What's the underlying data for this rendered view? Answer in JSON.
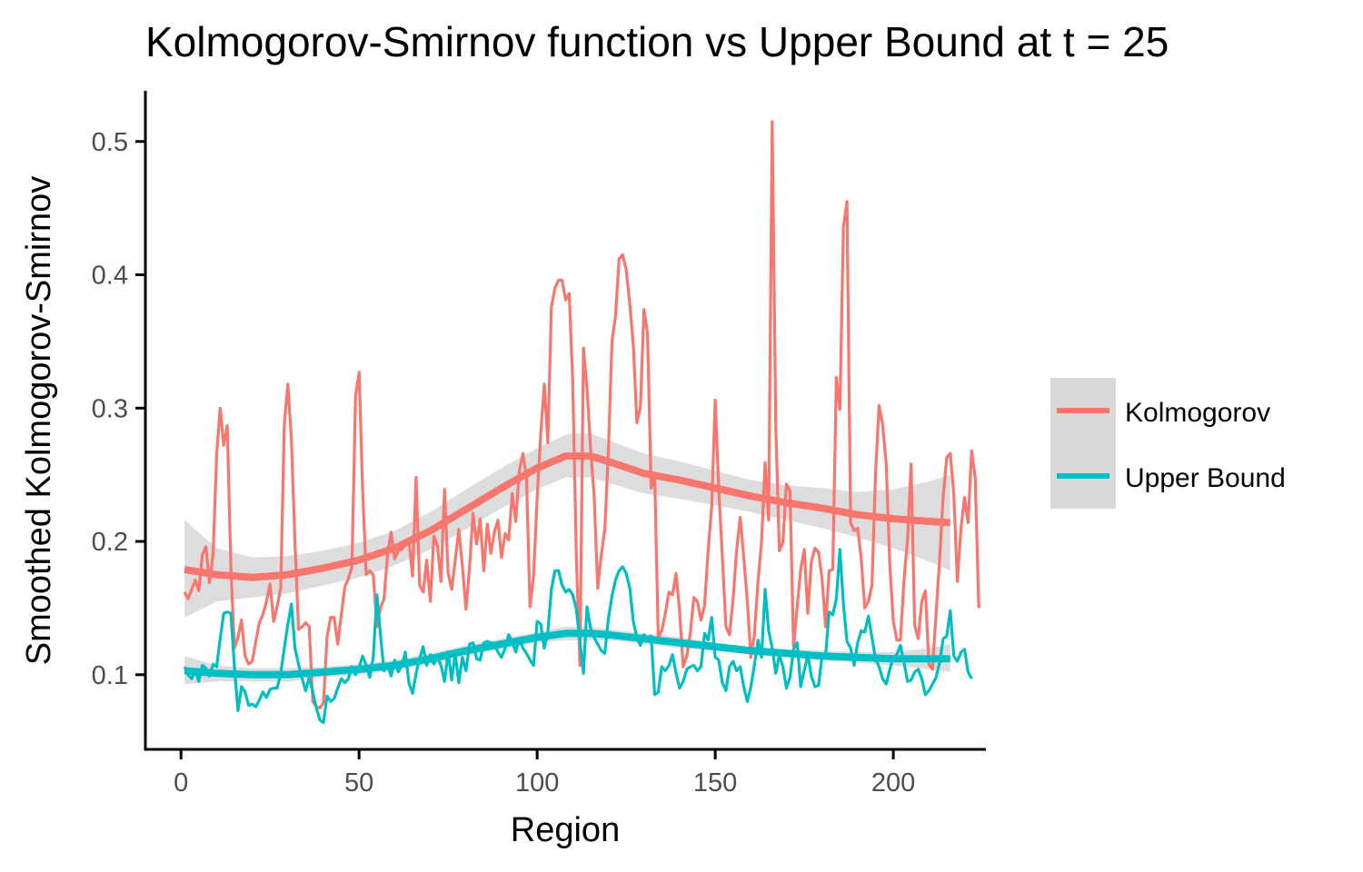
{
  "chart_data": {
    "type": "line",
    "title": "Kolmogorov-Smirnov function vs Upper Bound at t = 25",
    "xlabel": "Region",
    "ylabel": "Smoothed Kolmogorov-Smirnov",
    "xlim": [
      -10,
      226
    ],
    "ylim": [
      0.044,
      0.538
    ],
    "xticks": [
      0,
      50,
      100,
      150,
      200
    ],
    "yticks": [
      0.1,
      0.2,
      0.3,
      0.4,
      0.5
    ],
    "xtick_labels": [
      "0",
      "50",
      "100",
      "150",
      "200"
    ],
    "ytick_labels": [
      "0.1",
      "0.2",
      "0.3",
      "0.4",
      "0.5"
    ],
    "grid": false,
    "legend_position": "right",
    "colors": {
      "kolmogorov": "#F8766D",
      "upper_bound": "#00BFC4",
      "ribbon": "#D9D9D9",
      "axis": "#000000",
      "legend_key_bg": "#D9D9D9"
    },
    "series": [
      {
        "name": "Kolmogorov",
        "key": "kolmogorov",
        "x_start": 1,
        "values": [
          0.162,
          0.157,
          0.164,
          0.171,
          0.163,
          0.19,
          0.196,
          0.169,
          0.19,
          0.265,
          0.3,
          0.272,
          0.287,
          0.18,
          0.12,
          0.128,
          0.141,
          0.114,
          0.108,
          0.11,
          0.125,
          0.139,
          0.145,
          0.155,
          0.168,
          0.14,
          0.151,
          0.165,
          0.288,
          0.318,
          0.276,
          0.2,
          0.134,
          0.136,
          0.139,
          0.136,
          0.08,
          0.076,
          0.075,
          0.079,
          0.128,
          0.143,
          0.143,
          0.123,
          0.145,
          0.166,
          0.172,
          0.181,
          0.309,
          0.327,
          0.238,
          0.175,
          0.178,
          0.175,
          0.136,
          0.15,
          0.157,
          0.19,
          0.207,
          0.187,
          0.193,
          0.194,
          0.198,
          0.201,
          0.174,
          0.248,
          0.167,
          0.162,
          0.186,
          0.155,
          0.204,
          0.197,
          0.17,
          0.239,
          0.176,
          0.164,
          0.186,
          0.209,
          0.182,
          0.149,
          0.18,
          0.221,
          0.198,
          0.217,
          0.178,
          0.213,
          0.191,
          0.207,
          0.216,
          0.188,
          0.206,
          0.201,
          0.236,
          0.215,
          0.253,
          0.266,
          0.248,
          0.151,
          0.174,
          0.232,
          0.281,
          0.318,
          0.274,
          0.376,
          0.39,
          0.396,
          0.396,
          0.381,
          0.386,
          0.32,
          0.188,
          0.107,
          0.345,
          0.315,
          0.27,
          0.234,
          0.165,
          0.19,
          0.209,
          0.267,
          0.35,
          0.369,
          0.412,
          0.415,
          0.404,
          0.378,
          0.347,
          0.289,
          0.301,
          0.374,
          0.356,
          0.24,
          0.25,
          0.128,
          0.133,
          0.146,
          0.162,
          0.16,
          0.176,
          0.148,
          0.106,
          0.114,
          0.131,
          0.158,
          0.155,
          0.141,
          0.152,
          0.193,
          0.226,
          0.306,
          0.239,
          0.188,
          0.136,
          0.13,
          0.156,
          0.193,
          0.218,
          0.188,
          0.156,
          0.113,
          0.13,
          0.17,
          0.2,
          0.259,
          0.216,
          0.515,
          0.285,
          0.193,
          0.199,
          0.243,
          0.238,
          0.121,
          0.151,
          0.179,
          0.194,
          0.146,
          0.185,
          0.195,
          0.192,
          0.172,
          0.136,
          0.178,
          0.179,
          0.323,
          0.299,
          0.436,
          0.455,
          0.214,
          0.208,
          0.21,
          0.187,
          0.15,
          0.155,
          0.167,
          0.25,
          0.302,
          0.288,
          0.258,
          0.183,
          0.14,
          0.126,
          0.126,
          0.171,
          0.202,
          0.258,
          0.137,
          0.127,
          0.155,
          0.163,
          0.108,
          0.104,
          0.145,
          0.186,
          0.234,
          0.263,
          0.266,
          0.235,
          0.17,
          0.21,
          0.233,
          0.214,
          0.268,
          0.248,
          0.15
        ]
      },
      {
        "name": "Upper Bound",
        "key": "upper_bound",
        "x_start": 1,
        "values": [
          0.106,
          0.1,
          0.097,
          0.103,
          0.095,
          0.107,
          0.105,
          0.099,
          0.108,
          0.106,
          0.127,
          0.146,
          0.147,
          0.146,
          0.106,
          0.073,
          0.091,
          0.087,
          0.077,
          0.078,
          0.076,
          0.081,
          0.087,
          0.083,
          0.089,
          0.09,
          0.09,
          0.101,
          0.12,
          0.138,
          0.153,
          0.12,
          0.108,
          0.097,
          0.088,
          0.098,
          0.087,
          0.075,
          0.066,
          0.064,
          0.084,
          0.08,
          0.082,
          0.09,
          0.097,
          0.094,
          0.097,
          0.106,
          0.1,
          0.106,
          0.114,
          0.107,
          0.098,
          0.113,
          0.16,
          0.13,
          0.103,
          0.108,
          0.099,
          0.111,
          0.102,
          0.107,
          0.117,
          0.094,
          0.086,
          0.101,
          0.112,
          0.121,
          0.107,
          0.115,
          0.108,
          0.113,
          0.107,
          0.095,
          0.117,
          0.096,
          0.116,
          0.094,
          0.113,
          0.103,
          0.123,
          0.124,
          0.112,
          0.111,
          0.124,
          0.125,
          0.124,
          0.123,
          0.117,
          0.113,
          0.12,
          0.13,
          0.125,
          0.117,
          0.127,
          0.12,
          0.116,
          0.111,
          0.107,
          0.14,
          0.138,
          0.12,
          0.132,
          0.164,
          0.178,
          0.178,
          0.167,
          0.162,
          0.164,
          0.16,
          0.149,
          0.125,
          0.101,
          0.151,
          0.135,
          0.128,
          0.123,
          0.118,
          0.116,
          0.142,
          0.159,
          0.171,
          0.178,
          0.181,
          0.176,
          0.165,
          0.14,
          0.128,
          0.122,
          0.13,
          0.127,
          0.129,
          0.085,
          0.087,
          0.106,
          0.103,
          0.107,
          0.115,
          0.101,
          0.09,
          0.095,
          0.104,
          0.106,
          0.107,
          0.103,
          0.106,
          0.131,
          0.126,
          0.143,
          0.113,
          0.111,
          0.094,
          0.088,
          0.106,
          0.11,
          0.103,
          0.106,
          0.091,
          0.08,
          0.091,
          0.107,
          0.126,
          0.113,
          0.164,
          0.133,
          0.12,
          0.101,
          0.115,
          0.106,
          0.09,
          0.098,
          0.119,
          0.124,
          0.091,
          0.103,
          0.115,
          0.099,
          0.091,
          0.092,
          0.114,
          0.115,
          0.147,
          0.145,
          0.157,
          0.194,
          0.153,
          0.125,
          0.12,
          0.107,
          0.124,
          0.133,
          0.132,
          0.144,
          0.128,
          0.112,
          0.106,
          0.097,
          0.093,
          0.104,
          0.113,
          0.115,
          0.122,
          0.109,
          0.095,
          0.096,
          0.102,
          0.104,
          0.097,
          0.085,
          0.088,
          0.093,
          0.098,
          0.109,
          0.127,
          0.129,
          0.148,
          0.114,
          0.11,
          0.117,
          0.119,
          0.102,
          0.097
        ]
      }
    ],
    "smoothed": [
      {
        "name": "Kolmogorov",
        "key": "kolmogorov",
        "x": [
          1,
          10,
          20,
          30,
          40,
          50,
          60,
          70,
          80,
          90,
          100,
          108,
          110,
          115,
          120,
          130,
          140,
          150,
          160,
          170,
          180,
          190,
          200,
          210,
          216
        ],
        "fit": [
          0.179,
          0.175,
          0.173,
          0.175,
          0.18,
          0.186,
          0.195,
          0.208,
          0.224,
          0.24,
          0.255,
          0.264,
          0.264,
          0.264,
          0.26,
          0.251,
          0.246,
          0.24,
          0.234,
          0.229,
          0.225,
          0.22,
          0.217,
          0.215,
          0.214
        ],
        "lower": [
          0.143,
          0.155,
          0.158,
          0.161,
          0.167,
          0.173,
          0.182,
          0.194,
          0.209,
          0.225,
          0.239,
          0.248,
          0.248,
          0.248,
          0.244,
          0.236,
          0.232,
          0.227,
          0.222,
          0.216,
          0.21,
          0.203,
          0.195,
          0.185,
          0.178
        ],
        "upper": [
          0.216,
          0.195,
          0.188,
          0.189,
          0.193,
          0.199,
          0.208,
          0.222,
          0.239,
          0.255,
          0.27,
          0.28,
          0.281,
          0.281,
          0.276,
          0.266,
          0.26,
          0.253,
          0.246,
          0.242,
          0.24,
          0.237,
          0.239,
          0.245,
          0.25
        ]
      },
      {
        "name": "Upper Bound",
        "key": "upper_bound",
        "x": [
          1,
          10,
          20,
          30,
          40,
          50,
          60,
          70,
          80,
          90,
          100,
          108,
          110,
          115,
          120,
          130,
          140,
          150,
          160,
          170,
          180,
          190,
          200,
          210,
          216
        ],
        "fit": [
          0.103,
          0.101,
          0.1,
          0.1,
          0.102,
          0.104,
          0.107,
          0.112,
          0.118,
          0.123,
          0.128,
          0.131,
          0.131,
          0.131,
          0.13,
          0.127,
          0.124,
          0.121,
          0.118,
          0.116,
          0.114,
          0.113,
          0.112,
          0.112,
          0.112
        ],
        "lower": [
          0.093,
          0.095,
          0.095,
          0.095,
          0.098,
          0.1,
          0.103,
          0.108,
          0.114,
          0.119,
          0.124,
          0.126,
          0.126,
          0.126,
          0.126,
          0.123,
          0.12,
          0.118,
          0.115,
          0.113,
          0.111,
          0.109,
          0.107,
          0.104,
          0.102
        ],
        "upper": [
          0.114,
          0.107,
          0.105,
          0.105,
          0.106,
          0.108,
          0.111,
          0.116,
          0.122,
          0.127,
          0.132,
          0.136,
          0.136,
          0.136,
          0.134,
          0.131,
          0.128,
          0.124,
          0.121,
          0.119,
          0.118,
          0.117,
          0.117,
          0.12,
          0.123
        ]
      }
    ]
  }
}
